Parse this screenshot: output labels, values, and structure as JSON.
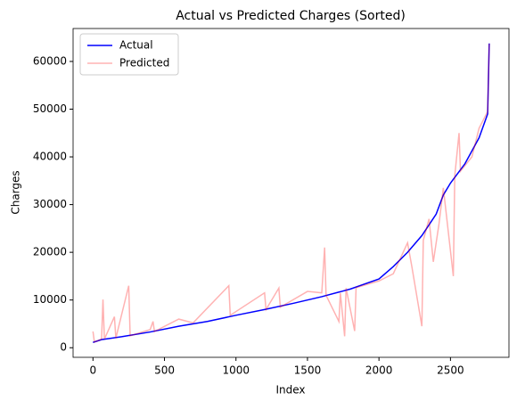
{
  "chart_data": {
    "type": "line",
    "title": "Actual vs Predicted Charges (Sorted)",
    "xlabel": "Index",
    "ylabel": "Charges",
    "series": [
      {
        "name": "Actual",
        "color": "#0000ff",
        "opacity": 1,
        "x": [
          0,
          60,
          200,
          400,
          600,
          800,
          1000,
          1200,
          1400,
          1600,
          1800,
          2000,
          2100,
          2200,
          2300,
          2400,
          2450,
          2500,
          2600,
          2700,
          2760,
          2771
        ],
        "values": [
          1121,
          1700,
          2300,
          3300,
          4500,
          5500,
          6800,
          8000,
          9300,
          10700,
          12300,
          14400,
          17000,
          20000,
          23500,
          28000,
          32000,
          34500,
          38500,
          44000,
          49000,
          63770
        ]
      },
      {
        "name": "Predicted",
        "color": "#ff0000",
        "opacity": 0.3,
        "x": [
          0,
          10,
          60,
          70,
          80,
          150,
          160,
          250,
          260,
          400,
          420,
          430,
          600,
          700,
          950,
          960,
          1200,
          1210,
          1300,
          1310,
          1500,
          1600,
          1620,
          1630,
          1720,
          1730,
          1760,
          1770,
          1830,
          1840,
          2000,
          2100,
          2200,
          2230,
          2300,
          2310,
          2350,
          2380,
          2420,
          2450,
          2520,
          2530,
          2560,
          2570,
          2650,
          2700,
          2760,
          2771
        ],
        "values": [
          3400,
          1200,
          1800,
          10100,
          1800,
          6500,
          2000,
          13000,
          2500,
          3800,
          5500,
          3400,
          6000,
          5200,
          13000,
          6800,
          11500,
          8000,
          12500,
          8500,
          11800,
          11500,
          21000,
          11000,
          5500,
          11500,
          2400,
          12500,
          3500,
          12600,
          14000,
          15500,
          22000,
          17000,
          4500,
          22500,
          27000,
          18000,
          26000,
          33500,
          15000,
          36000,
          45000,
          37000,
          40000,
          46000,
          49500,
          63700
        ]
      }
    ],
    "xlim": [
      -139,
      2909
    ],
    "xticks": [
      0,
      500,
      1000,
      1500,
      2000,
      2500
    ],
    "ylim": [
      -2011,
      66902
    ],
    "yticks": [
      0,
      10000,
      20000,
      30000,
      40000,
      50000,
      60000
    ],
    "legend": "upper left"
  }
}
